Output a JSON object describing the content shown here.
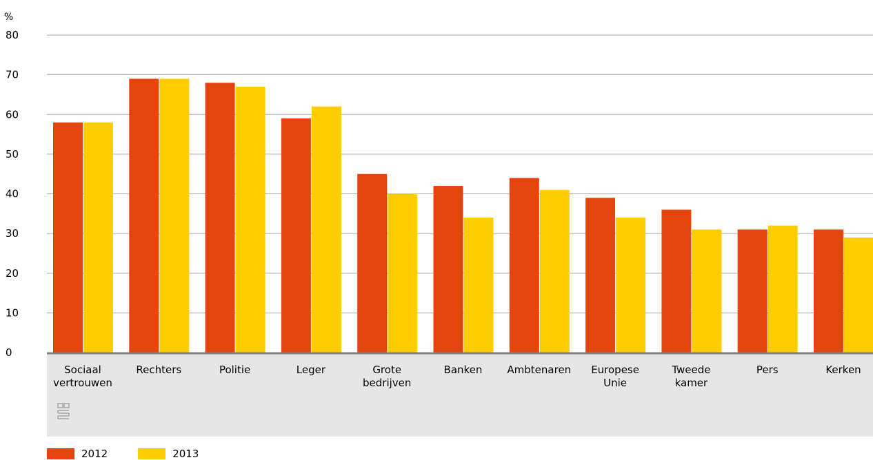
{
  "chart_data": {
    "type": "bar",
    "ylabel": "%",
    "ylim": [
      0,
      80
    ],
    "yticks": [
      "0",
      "10",
      "20",
      "30",
      "40",
      "50",
      "60",
      "70",
      "80"
    ],
    "grid": true,
    "categories": [
      "Sociaal vertrouwen",
      "Rechters",
      "Politie",
      "Leger",
      "Grote bedrijven",
      "Banken",
      "Ambtenaren",
      "Europese Unie",
      "Tweede kamer",
      "Pers",
      "Kerken"
    ],
    "category_lines": [
      [
        "Sociaal",
        "vertrouwen"
      ],
      [
        "Rechters"
      ],
      [
        "Politie"
      ],
      [
        "Leger"
      ],
      [
        "Grote",
        "bedrijven"
      ],
      [
        "Banken"
      ],
      [
        "Ambtenaren"
      ],
      [
        "Europese",
        "Unie"
      ],
      [
        "Tweede",
        "kamer"
      ],
      [
        "Pers"
      ],
      [
        "Kerken"
      ]
    ],
    "series": [
      {
        "name": "2012",
        "color": "#e5450c",
        "values": [
          58,
          69,
          68,
          59,
          45,
          42,
          44,
          39,
          36,
          31,
          31
        ]
      },
      {
        "name": "2013",
        "color": "#ffcc00",
        "values": [
          58,
          69,
          67,
          62,
          40,
          34,
          41,
          34,
          31,
          32,
          29
        ]
      }
    ],
    "legend_position": "bottom-left"
  },
  "colors": {
    "grid": "#a6a6a6",
    "axis": "#808080",
    "category_band": "#e6e6e6",
    "logo": "#a6a6a6"
  }
}
